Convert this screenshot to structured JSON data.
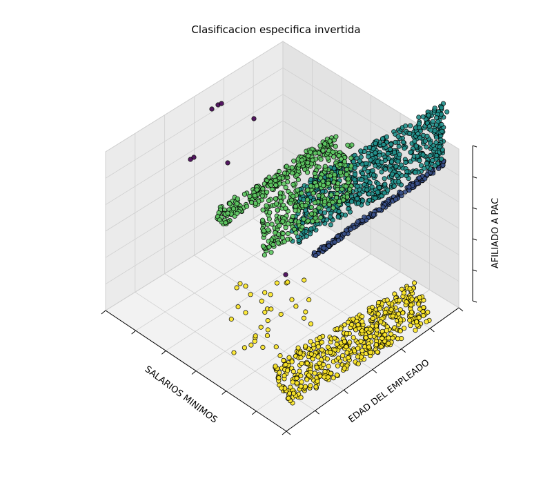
{
  "chart_data": {
    "type": "scatter",
    "projection": "3d",
    "title": "Clasificacion especifica invertida",
    "xlabel": "SALARIOS MINIMOS",
    "ylabel": "EDAD DEL EMPLEADO",
    "zlabel": "AFILIADO A PAC",
    "grid": true,
    "legend": "none",
    "colormap": [
      "#440154",
      "#3b528b",
      "#21918c",
      "#5ec962",
      "#fde725"
    ],
    "clusters": [
      {
        "color": "#fde725",
        "description_points": "bottom plane cluster",
        "count_estimate": 600
      },
      {
        "color": "#5ec962",
        "description_points": "upper-left band",
        "count_estimate": 300
      },
      {
        "color": "#21918c",
        "description_points": "upper-right dense band",
        "count_estimate": 900
      },
      {
        "color": "#3b528b",
        "description_points": "lower edge of right band",
        "count_estimate": 200
      },
      {
        "color": "#440154",
        "description_points": "outliers",
        "count_estimate": 8
      }
    ]
  }
}
